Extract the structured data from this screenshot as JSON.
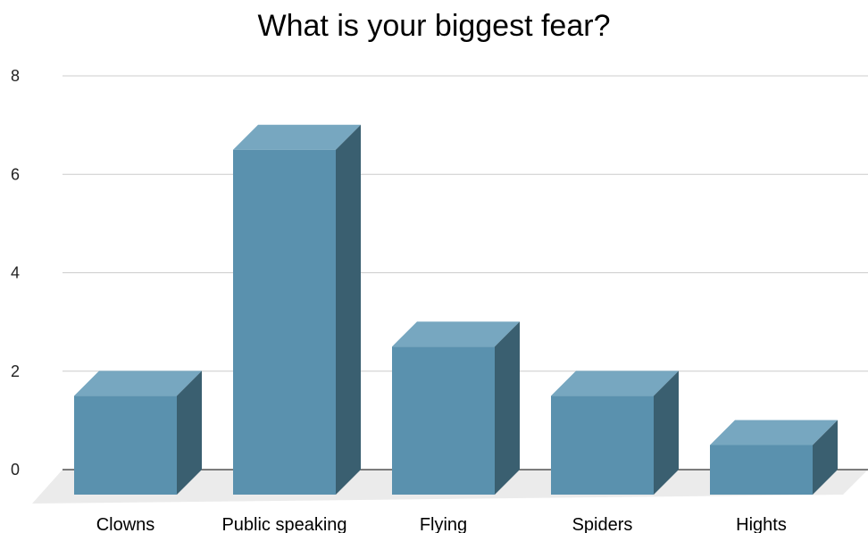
{
  "chart_data": {
    "type": "bar",
    "title": "What is your biggest fear?",
    "categories": [
      "Clowns",
      "Public speaking",
      "Flying",
      "Spiders",
      "Hights"
    ],
    "values": [
      2,
      7,
      3,
      2,
      1
    ],
    "yticks": [
      0,
      2,
      4,
      6,
      8
    ],
    "ylim": [
      0,
      8
    ],
    "xlabel": "",
    "ylabel": "",
    "grid": true,
    "style": "3d",
    "colors": {
      "front": "#5a91ae",
      "top": "#77a7c0",
      "side": "#3a5f70",
      "floor": "#ebebeb",
      "grid": "#cccccc",
      "baseline": "#333333"
    }
  }
}
